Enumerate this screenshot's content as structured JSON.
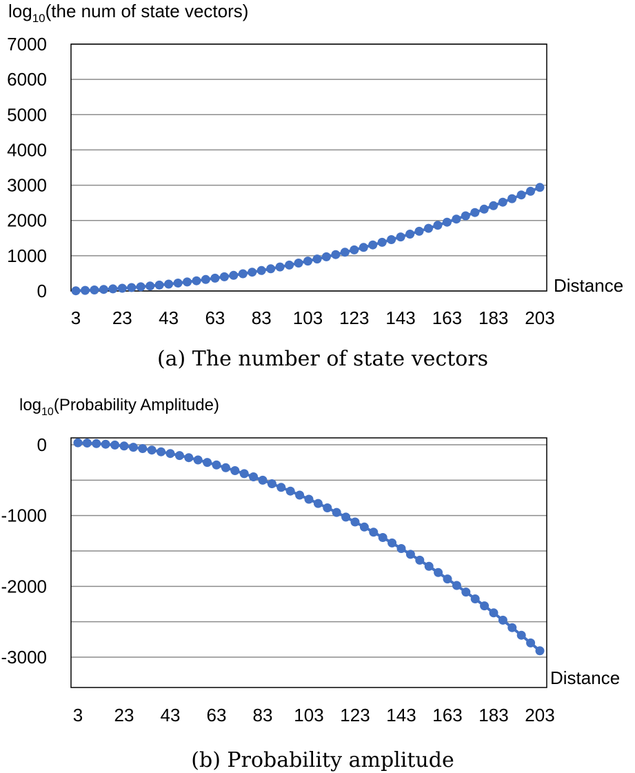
{
  "chart_data": [
    {
      "type": "line",
      "caption": "(a) The number of state vectors",
      "ylabel_main": "log",
      "ylabel_sub": "10",
      "ylabel_rest": "(the num of state vectors)",
      "xlabel": "Distance",
      "xlim": [
        3,
        203
      ],
      "ylim": [
        0,
        7000
      ],
      "yticks": [
        0,
        1000,
        2000,
        3000,
        4000,
        5000,
        6000,
        7000
      ],
      "ytick_labels": [
        "0",
        "1000",
        "2000",
        "3000",
        "4000",
        "5000",
        "6000",
        "7000"
      ],
      "xticks": [
        3,
        23,
        43,
        63,
        83,
        103,
        123,
        143,
        163,
        183,
        203
      ],
      "xtick_labels": [
        "3",
        "23",
        "43",
        "63",
        "83",
        "103",
        "123",
        "143",
        "163",
        "183",
        "203"
      ],
      "grid": true,
      "color": "#4472c4",
      "series": [
        {
          "x": [
            3,
            7,
            11,
            15,
            19,
            23,
            27,
            31,
            35,
            39,
            43,
            47,
            51,
            55,
            59,
            63,
            67,
            71,
            75,
            79,
            83,
            87,
            91,
            95,
            99,
            103,
            107,
            111,
            115,
            119,
            123,
            127,
            131,
            135,
            139,
            143,
            147,
            151,
            155,
            159,
            163,
            167,
            171,
            175,
            179,
            183,
            187,
            191,
            195,
            199,
            203
          ],
          "y": [
            6,
            17,
            30,
            44,
            60,
            78,
            98,
            119,
            143,
            168,
            196,
            225,
            257,
            290,
            326,
            363,
            403,
            444,
            488,
            533,
            581,
            630,
            682,
            735,
            791,
            848,
            908,
            969,
            1033,
            1098,
            1166,
            1235,
            1307,
            1380,
            1456,
            1533,
            1613,
            1694,
            1778,
            1863,
            1951,
            2040,
            2132,
            2225,
            2321,
            2418,
            2518,
            2619,
            2723,
            2828,
            2936
          ]
        }
      ]
    },
    {
      "type": "line",
      "caption": "(b) Probability amplitude",
      "ylabel_main": "log",
      "ylabel_sub": "10",
      "ylabel_rest": "(Probability Amplitude)",
      "xlabel": "Distance",
      "xlim": [
        3,
        203
      ],
      "ylim": [
        -3500,
        100
      ],
      "yticks": [
        0,
        -1000,
        -2000,
        -3000
      ],
      "ytick_labels": [
        "0",
        "-1000",
        "-2000",
        "-3000"
      ],
      "gridlines": [
        0,
        -500,
        -1000,
        -1500,
        -2000,
        -2500,
        -3000
      ],
      "xticks": [
        3,
        23,
        43,
        63,
        83,
        103,
        123,
        143,
        163,
        183,
        203
      ],
      "xtick_labels": [
        "3",
        "23",
        "43",
        "63",
        "83",
        "103",
        "123",
        "143",
        "163",
        "183",
        "203"
      ],
      "grid": true,
      "color": "#4472c4",
      "series": [
        {
          "x": [
            3,
            7,
            11,
            15,
            19,
            23,
            27,
            31,
            35,
            39,
            43,
            47,
            51,
            55,
            59,
            63,
            67,
            71,
            75,
            79,
            83,
            87,
            91,
            95,
            99,
            103,
            107,
            111,
            115,
            119,
            123,
            127,
            131,
            135,
            139,
            143,
            147,
            151,
            155,
            159,
            163,
            167,
            171,
            175,
            179,
            183,
            187,
            191,
            195,
            199,
            203
          ],
          "y": [
            28,
            24,
            17,
            8,
            -4,
            -18,
            -35,
            -54,
            -75,
            -99,
            -124,
            -152,
            -182,
            -214,
            -249,
            -285,
            -324,
            -365,
            -408,
            -453,
            -501,
            -550,
            -602,
            -655,
            -711,
            -769,
            -829,
            -891,
            -956,
            -1022,
            -1091,
            -1162,
            -1235,
            -1310,
            -1387,
            -1466,
            -1548,
            -1631,
            -1717,
            -1805,
            -1895,
            -1987,
            -2081,
            -2177,
            -2275,
            -2375,
            -2478,
            -2583,
            -2690,
            -2799,
            -2910
          ]
        }
      ]
    }
  ]
}
